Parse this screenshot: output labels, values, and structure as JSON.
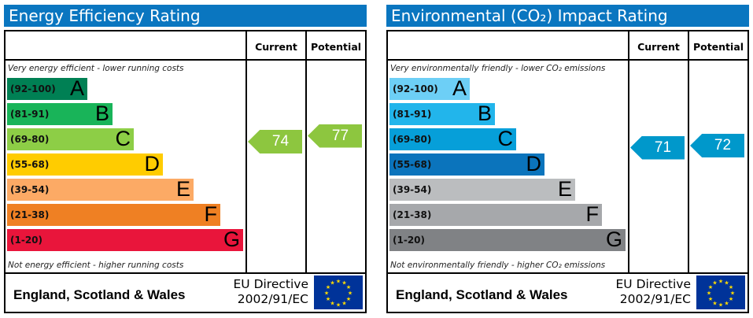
{
  "chart_data": [
    {
      "type": "table",
      "title": "Energy Efficiency Rating",
      "columns": [
        "Current",
        "Potential"
      ],
      "top_note": "Very energy efficient - lower running costs",
      "bottom_note": "Not energy efficient - higher running costs",
      "bands": [
        {
          "range": "(92-100)",
          "letter": "A",
          "color": "#008054"
        },
        {
          "range": "(81-91)",
          "letter": "B",
          "color": "#19b459"
        },
        {
          "range": "(69-80)",
          "letter": "C",
          "color": "#8dce46"
        },
        {
          "range": "(55-68)",
          "letter": "D",
          "color": "#ffcc00"
        },
        {
          "range": "(39-54)",
          "letter": "E",
          "color": "#fcaa65"
        },
        {
          "range": "(21-38)",
          "letter": "F",
          "color": "#ef8023"
        },
        {
          "range": "(1-20)",
          "letter": "G",
          "color": "#e9153b"
        }
      ],
      "current": 74,
      "potential": 77,
      "arrow_color": "#8dc63f",
      "footer": {
        "region": "England, Scotland & Wales",
        "directive_line1": "EU Directive",
        "directive_line2": "2002/91/EC"
      }
    },
    {
      "type": "table",
      "title": "Environmental (CO₂) Impact Rating",
      "columns": [
        "Current",
        "Potential"
      ],
      "top_note": "Very environmentally friendly - lower CO₂ emissions",
      "bottom_note": "Not environmentally friendly - higher CO₂ emissions",
      "bands": [
        {
          "range": "(92-100)",
          "letter": "A",
          "color": "#6dcff6"
        },
        {
          "range": "(81-91)",
          "letter": "B",
          "color": "#22b5eb"
        },
        {
          "range": "(69-80)",
          "letter": "C",
          "color": "#069fd9"
        },
        {
          "range": "(55-68)",
          "letter": "D",
          "color": "#0b74bc"
        },
        {
          "range": "(39-54)",
          "letter": "E",
          "color": "#bbbdbf"
        },
        {
          "range": "(21-38)",
          "letter": "F",
          "color": "#a6a8ab"
        },
        {
          "range": "(1-20)",
          "letter": "G",
          "color": "#808285"
        }
      ],
      "current": 71,
      "potential": 72,
      "arrow_color": "#0098cb",
      "footer": {
        "region": "England, Scotland & Wales",
        "directive_line1": "EU Directive",
        "directive_line2": "2002/91/EC"
      }
    }
  ]
}
